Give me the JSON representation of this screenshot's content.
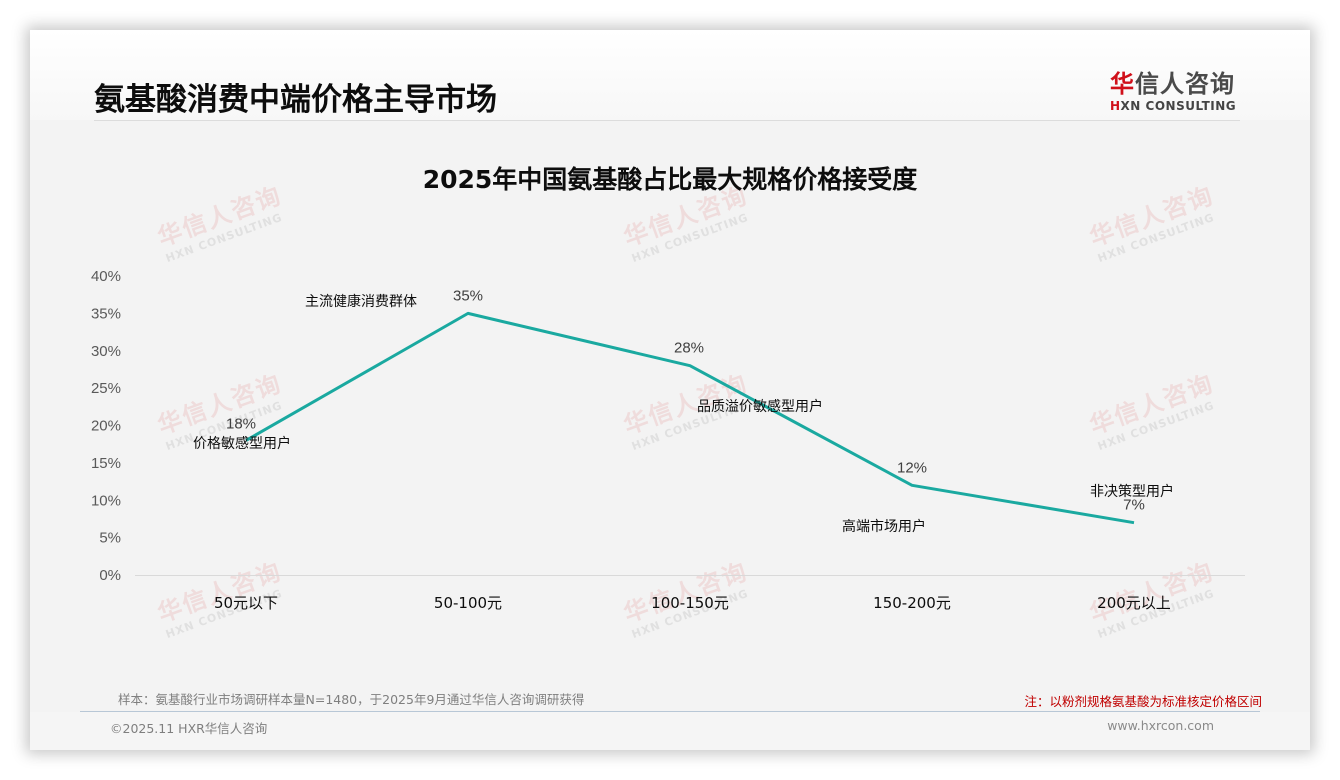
{
  "page": {
    "title": "氨基酸消费中端价格主导市场"
  },
  "logo": {
    "cn_first": "华",
    "cn_rest": "信人咨询",
    "en_first": "H",
    "en_rest": "XN CONSULTING"
  },
  "watermark": {
    "cn": "华信人咨询",
    "en": "HXN CONSULTING"
  },
  "chart_data": {
    "type": "line",
    "title": "2025年中国氨基酸占比最大规格价格接受度",
    "categories": [
      "50元以下",
      "50-100元",
      "100-150元",
      "150-200元",
      "200元以上"
    ],
    "values": [
      18,
      35,
      28,
      12,
      7
    ],
    "value_labels": [
      "18%",
      "35%",
      "28%",
      "12%",
      "7%"
    ],
    "annotations": [
      "价格敏感型用户",
      "主流健康消费群体",
      "品质溢价敏感型用户",
      "高端市场用户",
      "非决策型用户"
    ],
    "y_ticks": [
      "0%",
      "5%",
      "10%",
      "15%",
      "20%",
      "25%",
      "30%",
      "35%",
      "40%"
    ],
    "ylim": [
      0,
      40
    ],
    "xlabel": "",
    "ylabel": "",
    "grid": false,
    "legend": "none",
    "line_color": "#1aa9a0"
  },
  "footer": {
    "sample_note": "样本：氨基酸行业市场调研样本量N=1480，于2025年9月通过华信人咨询调研获得",
    "note": "注：以粉剂规格氨基酸为标准核定价格区间",
    "copyright": "©2025.11 HXR华信人咨询",
    "website": "www.hxrcon.com"
  }
}
